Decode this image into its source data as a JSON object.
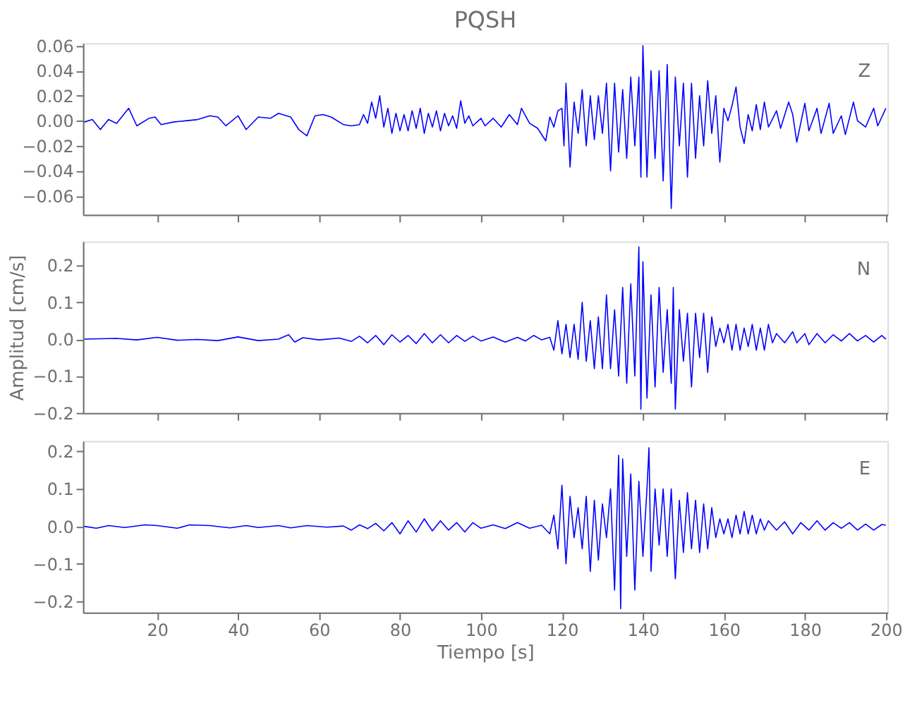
{
  "chart_data": [
    {
      "type": "line",
      "title": "PQSH",
      "grid": false,
      "tick_labels": "y",
      "xlim": [
        1.7,
        200.4
      ],
      "xticks": [
        20,
        40,
        60,
        80,
        100,
        120,
        140,
        160,
        180,
        200
      ],
      "ylim": [
        -0.075,
        0.062
      ],
      "yticks": [
        {
          "value": -0.06,
          "label": "−0.06"
        },
        {
          "value": -0.04,
          "label": "−0.04"
        },
        {
          "value": -0.02,
          "label": "−0.02"
        },
        {
          "value": 0,
          "label": "0.00"
        },
        {
          "value": 0.02,
          "label": "0.02"
        },
        {
          "value": 0.04,
          "label": "0.04"
        },
        {
          "value": 0.06,
          "label": "0.06"
        }
      ],
      "x": [
        2,
        4,
        6,
        8,
        10,
        13,
        15,
        18,
        19.5,
        21,
        24,
        27,
        30,
        33,
        35,
        37,
        40,
        42,
        45,
        48,
        50,
        53,
        55,
        57,
        59,
        61,
        63,
        66,
        68,
        70,
        71,
        72,
        73,
        74,
        75,
        76,
        77,
        78,
        79,
        80,
        81,
        82,
        83,
        84,
        85,
        86,
        87,
        88,
        89,
        90,
        91,
        92,
        93,
        94,
        95,
        96,
        97,
        98,
        100,
        101,
        103,
        105,
        107,
        109,
        110,
        112,
        114,
        116,
        117,
        118,
        119,
        120,
        120.5,
        121,
        122,
        123,
        124,
        125,
        126,
        127,
        128,
        129,
        130,
        131,
        132,
        133,
        134,
        135,
        136,
        137,
        138,
        139,
        139.5,
        140,
        141,
        142,
        143,
        144,
        145,
        146,
        147,
        148,
        149,
        150,
        151,
        152,
        153,
        154,
        155,
        156,
        157,
        158,
        159,
        160,
        161,
        162,
        163,
        164,
        165,
        166,
        167,
        168,
        169,
        170,
        171,
        173,
        174,
        176,
        177,
        178,
        180,
        181,
        183,
        184,
        186,
        187,
        189,
        190,
        192,
        193,
        195,
        197,
        198,
        200
      ],
      "series": [
        {
          "name": "Z",
          "color": "#0000ff",
          "values": [
            -0.001,
            0.001,
            -0.007,
            0.001,
            -0.002,
            0.01,
            -0.004,
            0.002,
            0.003,
            -0.003,
            -0.001,
            0.0,
            0.001,
            0.004,
            0.003,
            -0.004,
            0.004,
            -0.007,
            0.003,
            0.002,
            0.006,
            0.003,
            -0.007,
            -0.012,
            0.004,
            0.005,
            0.003,
            -0.003,
            -0.004,
            -0.003,
            0.005,
            -0.002,
            0.015,
            0.002,
            0.02,
            -0.005,
            0.01,
            -0.01,
            0.006,
            -0.008,
            0.005,
            -0.008,
            0.008,
            -0.006,
            0.01,
            -0.01,
            0.006,
            -0.005,
            0.008,
            -0.008,
            0.006,
            -0.004,
            0.004,
            -0.006,
            0.016,
            -0.002,
            0.004,
            -0.004,
            0.002,
            -0.004,
            0.002,
            -0.005,
            0.005,
            -0.003,
            0.01,
            -0.002,
            -0.006,
            -0.016,
            0.003,
            -0.005,
            0.008,
            0.01,
            -0.02,
            0.03,
            -0.037,
            0.015,
            -0.01,
            0.025,
            -0.02,
            0.02,
            -0.015,
            0.02,
            -0.01,
            0.03,
            -0.04,
            0.03,
            -0.025,
            0.025,
            -0.03,
            0.035,
            -0.02,
            0.035,
            -0.045,
            0.06,
            -0.045,
            0.04,
            -0.03,
            0.04,
            -0.048,
            0.045,
            -0.07,
            0.035,
            -0.02,
            0.03,
            -0.045,
            0.03,
            -0.03,
            0.02,
            -0.02,
            0.032,
            -0.01,
            0.02,
            -0.033,
            0.01,
            0.0,
            0.012,
            0.027,
            -0.005,
            -0.018,
            0.005,
            -0.008,
            0.013,
            -0.007,
            0.015,
            -0.005,
            0.008,
            -0.006,
            0.015,
            0.005,
            -0.017,
            0.014,
            -0.008,
            0.01,
            -0.01,
            0.014,
            -0.01,
            0.004,
            -0.011,
            0.015,
            0.0,
            -0.005,
            0.01,
            -0.004,
            0.01
          ]
        }
      ]
    },
    {
      "type": "line",
      "ylabel": "Amplitud [cm/s]",
      "grid": false,
      "tick_labels": "y",
      "xlim": [
        1.7,
        200.4
      ],
      "xticks": [
        20,
        40,
        60,
        80,
        100,
        120,
        140,
        160,
        180,
        200
      ],
      "ylim": [
        -0.2,
        0.265
      ],
      "yticks": [
        {
          "value": -0.2,
          "label": "−0.2"
        },
        {
          "value": -0.1,
          "label": "−0.1"
        },
        {
          "value": 0,
          "label": "0.0"
        },
        {
          "value": 0.1,
          "label": "0.1"
        },
        {
          "value": 0.2,
          "label": "0.2"
        }
      ],
      "x": [
        2,
        10,
        15,
        20,
        25,
        30,
        35,
        40,
        45,
        50,
        52.5,
        54,
        56,
        60,
        65,
        68,
        70,
        72,
        74,
        76,
        78,
        80,
        82,
        84,
        86,
        88,
        90,
        92,
        94,
        96,
        98,
        100,
        103,
        106,
        109,
        111,
        113,
        115,
        117,
        118,
        119,
        120,
        121,
        122,
        123,
        124,
        125,
        126,
        127,
        128,
        129,
        130,
        131,
        132,
        133,
        134,
        135,
        136,
        137,
        138,
        139,
        139.5,
        140,
        141,
        142,
        143,
        144,
        145,
        146,
        147,
        147.5,
        148,
        149,
        150,
        151,
        152,
        153,
        154,
        155,
        156,
        157,
        158,
        159,
        160,
        161,
        162,
        163,
        164,
        165,
        166,
        167,
        168,
        169,
        170,
        171,
        172,
        173,
        175,
        177,
        178,
        180,
        181,
        183,
        185,
        187,
        189,
        191,
        193,
        195,
        197,
        199,
        200
      ],
      "series": [
        {
          "name": "N",
          "color": "#0000ff",
          "values": [
            0,
            0.002,
            -0.002,
            0.005,
            -0.003,
            -0.001,
            -0.004,
            0.006,
            -0.004,
            0.0,
            0.012,
            -0.008,
            0.004,
            -0.002,
            0.003,
            -0.006,
            0.008,
            -0.01,
            0.01,
            -0.015,
            0.012,
            -0.008,
            0.01,
            -0.012,
            0.015,
            -0.01,
            0.012,
            -0.01,
            0.01,
            -0.006,
            0.008,
            -0.005,
            0.006,
            -0.008,
            0.005,
            -0.005,
            0.01,
            -0.002,
            0.005,
            -0.03,
            0.05,
            -0.04,
            0.04,
            -0.05,
            0.04,
            -0.055,
            0.1,
            -0.06,
            0.05,
            -0.08,
            0.06,
            -0.08,
            0.12,
            -0.08,
            0.08,
            -0.1,
            0.14,
            -0.12,
            0.15,
            -0.1,
            0.25,
            -0.19,
            0.21,
            -0.16,
            0.12,
            -0.13,
            0.14,
            -0.09,
            0.08,
            -0.12,
            0.14,
            -0.19,
            0.08,
            -0.06,
            0.07,
            -0.13,
            0.07,
            -0.05,
            0.07,
            -0.09,
            0.06,
            -0.02,
            0.03,
            -0.01,
            0.04,
            -0.03,
            0.04,
            -0.03,
            0.03,
            -0.02,
            0.04,
            -0.03,
            0.03,
            -0.03,
            0.04,
            -0.01,
            0.015,
            -0.01,
            0.02,
            -0.01,
            0.015,
            -0.015,
            0.015,
            -0.01,
            0.012,
            -0.005,
            0.015,
            -0.005,
            0.01,
            -0.008,
            0.01,
            0.0
          ]
        }
      ]
    },
    {
      "type": "line",
      "xlabel": "Tiempo [s]",
      "grid": false,
      "xlim": [
        1.7,
        200.4
      ],
      "xticks": [
        20,
        40,
        60,
        80,
        100,
        120,
        140,
        160,
        180,
        200
      ],
      "ylim": [
        -0.23,
        0.228
      ],
      "yticks": [
        {
          "value": -0.2,
          "label": "−0.2"
        },
        {
          "value": -0.1,
          "label": "−0.1"
        },
        {
          "value": 0,
          "label": "0.0"
        },
        {
          "value": 0.1,
          "label": "0.1"
        },
        {
          "value": 0.2,
          "label": "0.2"
        }
      ],
      "x": [
        2,
        5,
        8,
        12,
        17,
        20,
        25,
        28,
        33,
        38,
        42,
        45,
        50,
        53,
        57,
        62,
        66,
        68,
        70,
        72,
        74,
        76,
        78,
        80,
        82,
        84,
        86,
        88,
        90,
        92,
        94,
        96,
        98,
        100,
        103,
        106,
        109,
        112,
        115,
        117,
        118,
        119,
        120,
        121,
        122,
        123,
        124,
        125,
        126,
        127,
        128,
        129,
        130,
        131,
        132,
        133,
        134,
        134.5,
        135,
        136,
        137,
        138,
        139,
        140,
        141,
        141.5,
        142,
        143,
        144,
        145,
        146,
        147,
        148,
        149,
        150,
        151,
        152,
        153,
        154,
        155,
        156,
        157,
        158,
        159,
        160,
        161,
        162,
        163,
        164,
        165,
        166,
        167,
        168,
        169,
        170,
        171,
        173,
        175,
        177,
        179,
        181,
        183,
        185,
        187,
        189,
        191,
        193,
        195,
        197,
        199,
        200
      ],
      "series": [
        {
          "name": "E",
          "color": "#0000ff",
          "values": [
            0,
            -0.005,
            0.002,
            -0.003,
            0.004,
            0.002,
            -0.005,
            0.004,
            0.002,
            -0.004,
            0.002,
            -0.003,
            0.002,
            -0.004,
            0.002,
            -0.002,
            0.001,
            -0.01,
            0.004,
            -0.006,
            0.008,
            -0.012,
            0.01,
            -0.02,
            0.015,
            -0.015,
            0.02,
            -0.012,
            0.015,
            -0.01,
            0.01,
            -0.015,
            0.01,
            -0.005,
            0.004,
            -0.006,
            0.01,
            -0.005,
            0.003,
            -0.02,
            0.03,
            -0.06,
            0.11,
            -0.1,
            0.08,
            -0.03,
            0.05,
            -0.06,
            0.08,
            -0.12,
            0.07,
            -0.09,
            0.06,
            -0.03,
            0.1,
            -0.17,
            0.19,
            -0.22,
            0.18,
            -0.08,
            0.14,
            -0.17,
            0.12,
            -0.08,
            0.1,
            0.21,
            -0.12,
            0.1,
            -0.05,
            0.1,
            -0.08,
            0.1,
            -0.14,
            0.07,
            -0.07,
            0.09,
            -0.06,
            0.07,
            -0.07,
            0.06,
            -0.06,
            0.05,
            -0.03,
            0.02,
            -0.02,
            0.02,
            -0.03,
            0.03,
            -0.02,
            0.04,
            -0.02,
            0.03,
            -0.02,
            0.02,
            -0.01,
            0.015,
            -0.01,
            0.012,
            -0.02,
            0.01,
            -0.01,
            0.015,
            -0.01,
            0.01,
            -0.005,
            0.01,
            -0.01,
            0.006,
            -0.01,
            0.005,
            0.003
          ]
        }
      ]
    }
  ]
}
